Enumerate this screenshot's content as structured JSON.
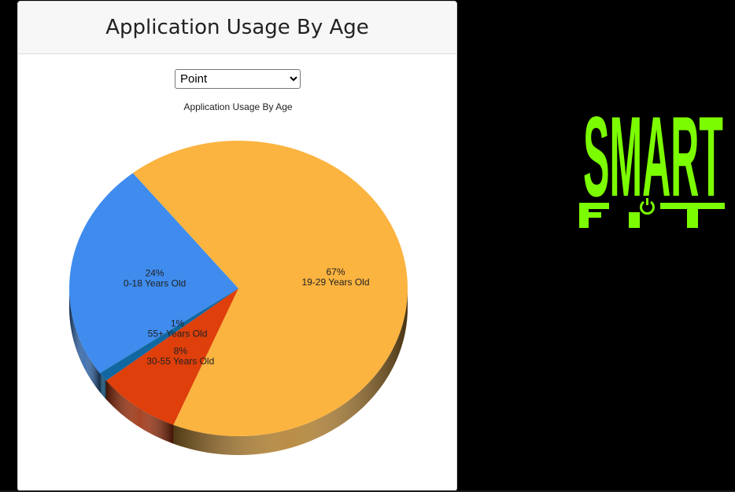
{
  "card": {
    "title": "Application Usage By Age"
  },
  "controls": {
    "chart_type_options": [
      "Point"
    ],
    "chart_type_selected": "Point"
  },
  "logo": {
    "word1": "SMART",
    "word2": "FIT",
    "color": "#7CFC00"
  },
  "chart_data": {
    "type": "pie",
    "title": "Application Usage By Age",
    "style": "3d",
    "slices": [
      {
        "label": "0-18 Years Old",
        "value": 24,
        "display": "24%",
        "color": "#3F8CEE"
      },
      {
        "label": "19-29 Years Old",
        "value": 67,
        "display": "67%",
        "color": "#FBB440"
      },
      {
        "label": "30-55 Years Old",
        "value": 8,
        "display": "8%",
        "color": "#DE3F0B"
      },
      {
        "label": "55+ Years Old",
        "value": 1,
        "display": "1%",
        "color": "#1167A0"
      }
    ]
  }
}
